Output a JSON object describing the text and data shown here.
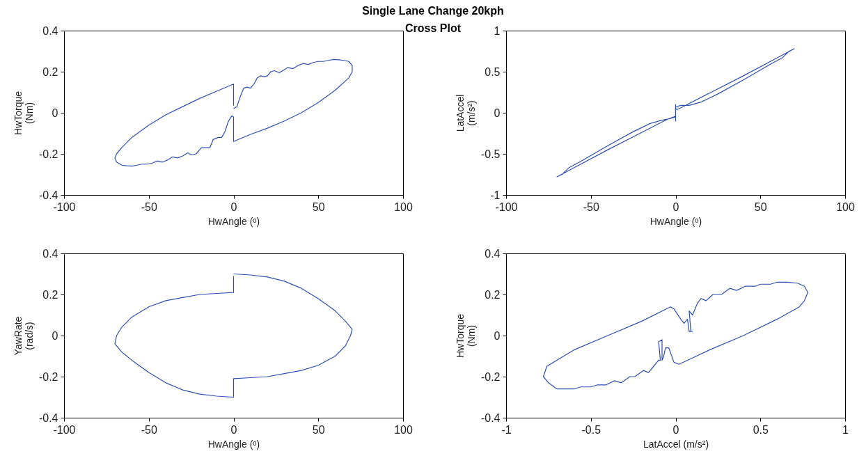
{
  "chart_data": [
    {
      "type": "line",
      "title": "Single Lane Change 20kph",
      "subtitle": "Cross Plot",
      "xlabel": "HwAngle (ᵒ)",
      "ylabel": "HwTorque\n(Nm)",
      "xlim": [
        -100,
        100
      ],
      "ylim": [
        -0.4,
        0.4
      ],
      "xticks": [
        -100,
        -50,
        0,
        50,
        100
      ],
      "yticks": [
        -0.4,
        -0.2,
        0,
        0.2,
        0.4
      ],
      "series": [
        {
          "color": "#2f4fb0",
          "x": [
            0,
            2,
            4,
            6,
            8,
            10,
            12,
            14,
            16,
            18,
            20,
            22,
            24,
            27,
            30,
            32,
            35,
            38,
            41,
            44,
            47,
            50,
            53,
            56,
            59,
            62,
            65,
            68,
            70,
            70,
            68,
            60,
            50,
            40,
            30,
            20,
            10,
            0,
            0,
            -1,
            -3,
            -5,
            -7,
            -9,
            -12,
            -14,
            -17,
            -19,
            -22,
            -25,
            -27,
            -30,
            -33,
            -36,
            -39,
            -42,
            -45,
            -48,
            -51,
            -54,
            -57,
            -60,
            -63,
            -66,
            -69,
            -70,
            -69,
            -66,
            -60,
            -50,
            -40,
            -30,
            -20,
            -10,
            0,
            0
          ],
          "values": [
            0.02,
            0.03,
            0.08,
            0.12,
            0.125,
            0.12,
            0.14,
            0.17,
            0.18,
            0.175,
            0.18,
            0.2,
            0.205,
            0.195,
            0.21,
            0.22,
            0.215,
            0.23,
            0.24,
            0.235,
            0.245,
            0.25,
            0.25,
            0.255,
            0.26,
            0.258,
            0.255,
            0.25,
            0.23,
            0.2,
            0.17,
            0.11,
            0.05,
            0,
            -0.04,
            -0.075,
            -0.105,
            -0.14,
            -0.02,
            -0.015,
            -0.04,
            -0.09,
            -0.12,
            -0.12,
            -0.13,
            -0.17,
            -0.17,
            -0.17,
            -0.2,
            -0.205,
            -0.195,
            -0.21,
            -0.22,
            -0.215,
            -0.23,
            -0.24,
            -0.235,
            -0.245,
            -0.25,
            -0.25,
            -0.255,
            -0.26,
            -0.258,
            -0.255,
            -0.24,
            -0.22,
            -0.2,
            -0.17,
            -0.12,
            -0.06,
            -0.01,
            0.03,
            0.07,
            0.105,
            0.14,
            0.035
          ]
        }
      ]
    },
    {
      "type": "line",
      "xlabel": "HwAngle (ᵒ)",
      "ylabel": "LatAccel\n(m/s²)",
      "xlim": [
        -100,
        100
      ],
      "ylim": [
        -1,
        1
      ],
      "xticks": [
        -100,
        -50,
        0,
        50,
        100
      ],
      "yticks": [
        -1,
        -0.5,
        0,
        0.5,
        1
      ],
      "series": [
        {
          "color": "#2f4fb0",
          "x": [
            0,
            3,
            8,
            15,
            25,
            40,
            55,
            63,
            67,
            70,
            60,
            40,
            20,
            5,
            1,
            0,
            0,
            0,
            0,
            -3,
            -8,
            -15,
            -25,
            -40,
            -55,
            -63,
            -67,
            -70,
            -60,
            -40,
            -20,
            -5,
            -1,
            0
          ],
          "values": [
            0.07,
            0.09,
            0.09,
            0.13,
            0.23,
            0.4,
            0.58,
            0.67,
            0.75,
            0.78,
            0.67,
            0.45,
            0.24,
            0.08,
            0.04,
            0.05,
            0.1,
            -0.1,
            -0.05,
            -0.07,
            -0.09,
            -0.13,
            -0.23,
            -0.4,
            -0.58,
            -0.67,
            -0.75,
            -0.78,
            -0.67,
            -0.45,
            -0.24,
            -0.08,
            -0.05,
            -0.04
          ]
        }
      ]
    },
    {
      "type": "line",
      "xlabel": "HwAngle (ᵒ)",
      "ylabel": "YawRate\n(rad/s)",
      "xlim": [
        -100,
        100
      ],
      "ylim": [
        -0.4,
        0.4
      ],
      "xticks": [
        -100,
        -50,
        0,
        50,
        100
      ],
      "yticks": [
        -0.4,
        -0.2,
        0,
        0.2,
        0.4
      ],
      "series": [
        {
          "color": "#2f4fb0",
          "x": [
            0,
            10,
            20,
            30,
            40,
            50,
            60,
            66,
            70,
            69,
            66,
            60,
            50,
            40,
            30,
            20,
            10,
            0,
            0,
            -10,
            -20,
            -30,
            -40,
            -50,
            -60,
            -66,
            -70,
            -69,
            -66,
            -60,
            -50,
            -40,
            -30,
            -20,
            -10,
            0,
            0
          ],
          "values": [
            0.3,
            0.295,
            0.285,
            0.265,
            0.23,
            0.18,
            0.12,
            0.07,
            0.03,
            0,
            -0.05,
            -0.1,
            -0.145,
            -0.17,
            -0.185,
            -0.2,
            -0.205,
            -0.21,
            -0.3,
            -0.295,
            -0.285,
            -0.265,
            -0.23,
            -0.18,
            -0.12,
            -0.08,
            -0.04,
            0,
            0.04,
            0.09,
            0.14,
            0.17,
            0.185,
            0.2,
            0.205,
            0.21,
            0.29
          ]
        }
      ]
    },
    {
      "type": "line",
      "xlabel": "LatAccel (m/s²)",
      "ylabel": "HwTorque\n(Nm)",
      "xlim": [
        -1,
        1
      ],
      "ylim": [
        -0.4,
        0.4
      ],
      "xticks": [
        -1,
        -0.5,
        0,
        0.5,
        1
      ],
      "yticks": [
        -0.4,
        -0.2,
        0,
        0.2,
        0.4
      ],
      "series": [
        {
          "color": "#2f4fb0",
          "x": [
            0.09,
            0.08,
            0.1,
            0.13,
            0.15,
            0.18,
            0.22,
            0.27,
            0.32,
            0.36,
            0.41,
            0.47,
            0.5,
            0.56,
            0.6,
            0.66,
            0.72,
            0.76,
            0.78,
            0.76,
            0.73,
            0.6,
            0.4,
            0.2,
            0.02,
            -0.01,
            -0.04,
            -0.06,
            -0.07,
            -0.08,
            -0.08,
            -0.1,
            -0.09,
            -0.1,
            -0.13,
            -0.16,
            -0.19,
            -0.24,
            -0.27,
            -0.32,
            -0.36,
            -0.41,
            -0.46,
            -0.5,
            -0.56,
            -0.6,
            -0.66,
            -0.7,
            -0.75,
            -0.78,
            -0.76,
            -0.6,
            -0.4,
            -0.2,
            -0.03,
            -0.01,
            0.03,
            0.05,
            0.07,
            0.08,
            0.1
          ],
          "values": [
            0.02,
            0.12,
            0.1,
            0.16,
            0.18,
            0.17,
            0.2,
            0.2,
            0.23,
            0.22,
            0.24,
            0.24,
            0.25,
            0.25,
            0.26,
            0.26,
            0.255,
            0.24,
            0.21,
            0.17,
            0.14,
            0.08,
            0,
            -0.07,
            -0.14,
            -0.13,
            -0.06,
            -0.06,
            -0.1,
            -0.12,
            -0.02,
            -0.03,
            -0.12,
            -0.12,
            -0.15,
            -0.18,
            -0.17,
            -0.2,
            -0.2,
            -0.23,
            -0.22,
            -0.24,
            -0.24,
            -0.25,
            -0.25,
            -0.26,
            -0.26,
            -0.26,
            -0.23,
            -0.2,
            -0.15,
            -0.07,
            0,
            0.07,
            0.14,
            0.13,
            0.08,
            0.06,
            0.08,
            0.02,
            0.02
          ]
        }
      ]
    }
  ]
}
